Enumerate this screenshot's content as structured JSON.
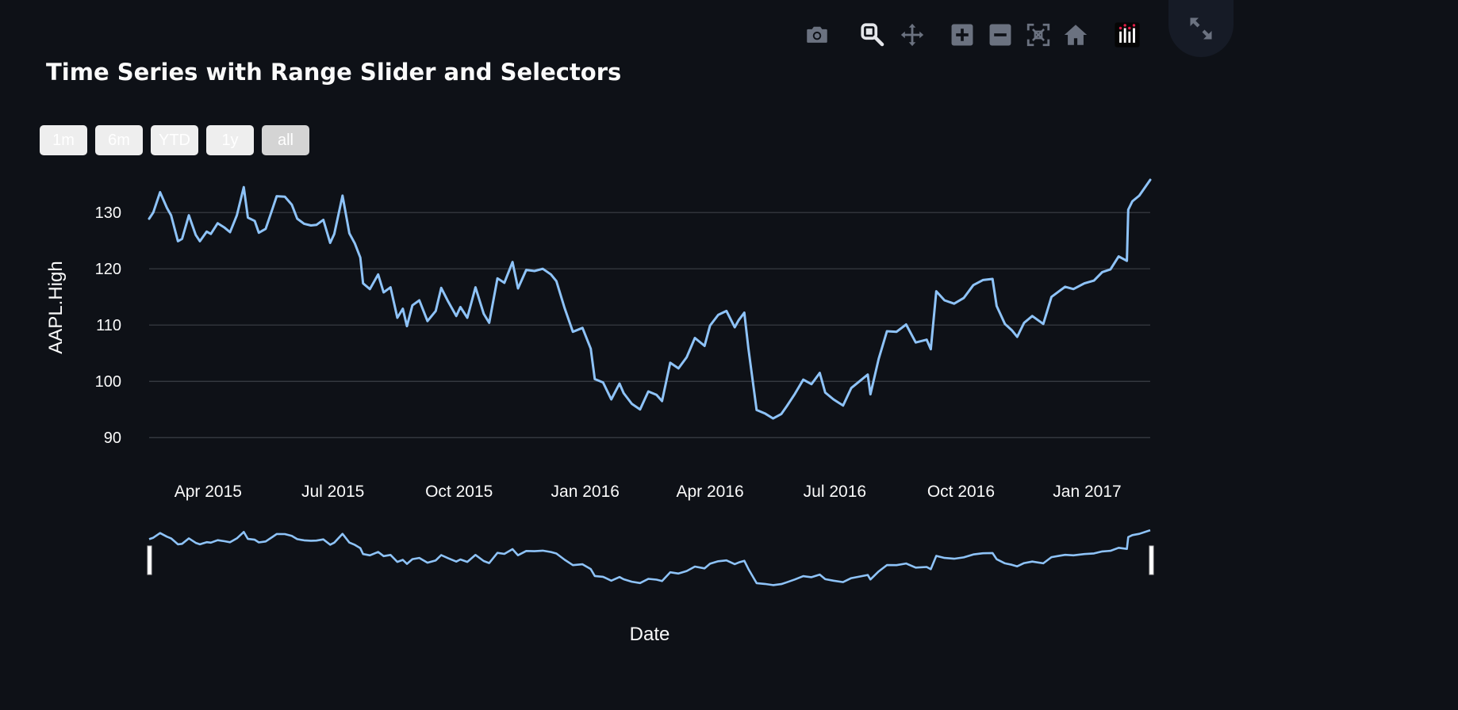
{
  "title": "Time Series with Range Slider and Selectors",
  "range_selector": {
    "buttons": [
      "1m",
      "6m",
      "YTD",
      "1y",
      "all"
    ],
    "active": "all"
  },
  "toolbar": {
    "icons": [
      "camera-icon",
      "zoom-icon",
      "pan-icon",
      "zoom-in-icon",
      "zoom-out-icon",
      "autoscale-icon",
      "reset-axes-icon",
      "plotly-logo-icon"
    ],
    "fullscreen_icon": "fullscreen-icon"
  },
  "colors": {
    "background": "#0e1117",
    "line": "#8ec3f8",
    "grid": "#3b3f47",
    "text": "#fafafa",
    "toolbar_icon": "#6b7280",
    "toolbar_icon_active": "#e5e7eb"
  },
  "chart_data": {
    "type": "line",
    "title": "Time Series with Range Slider and Selectors",
    "xlabel": "Date",
    "ylabel": "AAPL.High",
    "x_tick_labels": [
      "Apr 2015",
      "Jul 2015",
      "Oct 2015",
      "Jan 2016",
      "Apr 2016",
      "Jul 2016",
      "Oct 2016",
      "Jan 2017"
    ],
    "x_ticks": [
      "2015-04-01",
      "2015-07-01",
      "2015-10-01",
      "2016-01-01",
      "2016-04-01",
      "2016-07-01",
      "2016-10-01",
      "2017-01-01"
    ],
    "y_ticks": [
      90,
      100,
      110,
      120,
      130
    ],
    "xlim": [
      "2015-02-17",
      "2017-02-16"
    ],
    "ylim": [
      87.5,
      136.5
    ],
    "grid": true,
    "range_slider": true,
    "series": [
      {
        "x": [
          "2015-02-17",
          "2015-02-20",
          "2015-02-25",
          "2015-03-02",
          "2015-03-05",
          "2015-03-10",
          "2015-03-13",
          "2015-03-18",
          "2015-03-23",
          "2015-03-26",
          "2015-03-31",
          "2015-04-03",
          "2015-04-08",
          "2015-04-13",
          "2015-04-17",
          "2015-04-22",
          "2015-04-27",
          "2015-04-30",
          "2015-05-05",
          "2015-05-08",
          "2015-05-13",
          "2015-05-18",
          "2015-05-21",
          "2015-05-27",
          "2015-06-01",
          "2015-06-05",
          "2015-06-10",
          "2015-06-15",
          "2015-06-19",
          "2015-06-24",
          "2015-06-29",
          "2015-07-02",
          "2015-07-08",
          "2015-07-13",
          "2015-07-17",
          "2015-07-21",
          "2015-07-23",
          "2015-07-28",
          "2015-08-03",
          "2015-08-07",
          "2015-08-12",
          "2015-08-17",
          "2015-08-21",
          "2015-08-24",
          "2015-08-28",
          "2015-09-02",
          "2015-09-08",
          "2015-09-14",
          "2015-09-18",
          "2015-09-23",
          "2015-09-29",
          "2015-10-02",
          "2015-10-07",
          "2015-10-13",
          "2015-10-19",
          "2015-10-23",
          "2015-10-29",
          "2015-11-03",
          "2015-11-09",
          "2015-11-13",
          "2015-11-19",
          "2015-11-25",
          "2015-12-01",
          "2015-12-07",
          "2015-12-11",
          "2015-12-17",
          "2015-12-23",
          "2015-12-30",
          "2016-01-05",
          "2016-01-08",
          "2016-01-14",
          "2016-01-20",
          "2016-01-26",
          "2016-01-29",
          "2016-02-04",
          "2016-02-10",
          "2016-02-16",
          "2016-02-22",
          "2016-02-26",
          "2016-03-03",
          "2016-03-09",
          "2016-03-15",
          "2016-03-21",
          "2016-03-28",
          "2016-04-01",
          "2016-04-07",
          "2016-04-13",
          "2016-04-19",
          "2016-04-22",
          "2016-04-26",
          "2016-04-29",
          "2016-05-05",
          "2016-05-11",
          "2016-05-17",
          "2016-05-23",
          "2016-05-27",
          "2016-06-02",
          "2016-06-08",
          "2016-06-14",
          "2016-06-20",
          "2016-06-24",
          "2016-06-30",
          "2016-07-07",
          "2016-07-13",
          "2016-07-19",
          "2016-07-25",
          "2016-07-27",
          "2016-08-02",
          "2016-08-08",
          "2016-08-15",
          "2016-08-22",
          "2016-08-29",
          "2016-09-06",
          "2016-09-09",
          "2016-09-13",
          "2016-09-19",
          "2016-09-26",
          "2016-10-03",
          "2016-10-10",
          "2016-10-17",
          "2016-10-24",
          "2016-10-27",
          "2016-11-02",
          "2016-11-07",
          "2016-11-11",
          "2016-11-16",
          "2016-11-22",
          "2016-11-30",
          "2016-12-06",
          "2016-12-12",
          "2016-12-16",
          "2016-12-22",
          "2016-12-30",
          "2017-01-06",
          "2017-01-12",
          "2017-01-18",
          "2017-01-24",
          "2017-01-30",
          "2017-01-31",
          "2017-02-03",
          "2017-02-08",
          "2017-02-16"
        ],
        "y": [
          128.9,
          130.0,
          133.6,
          130.8,
          129.5,
          124.9,
          125.3,
          129.5,
          126.0,
          124.9,
          126.6,
          126.2,
          128.1,
          127.3,
          126.5,
          129.5,
          134.5,
          129.1,
          128.5,
          126.4,
          127.1,
          130.7,
          132.9,
          132.8,
          131.4,
          128.9,
          128.0,
          127.7,
          127.8,
          128.7,
          124.6,
          126.2,
          133.0,
          126.3,
          124.5,
          122.0,
          117.4,
          116.4,
          119.0,
          115.8,
          116.7,
          111.3,
          112.9,
          109.8,
          113.5,
          114.4,
          110.7,
          112.5,
          116.6,
          114.2,
          111.6,
          113.2,
          111.3,
          116.7,
          112.0,
          110.4,
          118.3,
          117.5,
          121.2,
          116.5,
          119.8,
          119.6,
          120.0,
          119.0,
          117.8,
          113.0,
          108.8,
          109.5,
          105.8,
          100.4,
          99.8,
          96.8,
          99.6,
          97.9,
          96.0,
          95.0,
          98.2,
          97.6,
          96.5,
          103.3,
          102.3,
          104.3,
          107.7,
          106.3,
          109.9,
          111.8,
          112.5,
          109.6,
          110.9,
          112.2,
          105.8,
          94.9,
          94.3,
          93.4,
          94.2,
          95.6,
          97.8,
          100.3,
          99.5,
          101.5,
          98.0,
          96.8,
          95.7,
          98.8,
          100.0,
          101.2,
          97.7,
          104.0,
          108.9,
          108.8,
          110.1,
          106.9,
          107.4,
          105.7,
          116.0,
          114.4,
          113.8,
          114.8,
          117.1,
          118.0,
          118.2,
          113.4,
          110.2,
          109.1,
          107.9,
          110.4,
          111.6,
          110.2,
          115.0,
          116.1,
          116.8,
          116.4,
          117.4,
          117.9,
          119.4,
          119.9,
          122.2,
          121.4,
          130.5,
          132.0,
          133.0,
          135.8
        ]
      }
    ]
  }
}
